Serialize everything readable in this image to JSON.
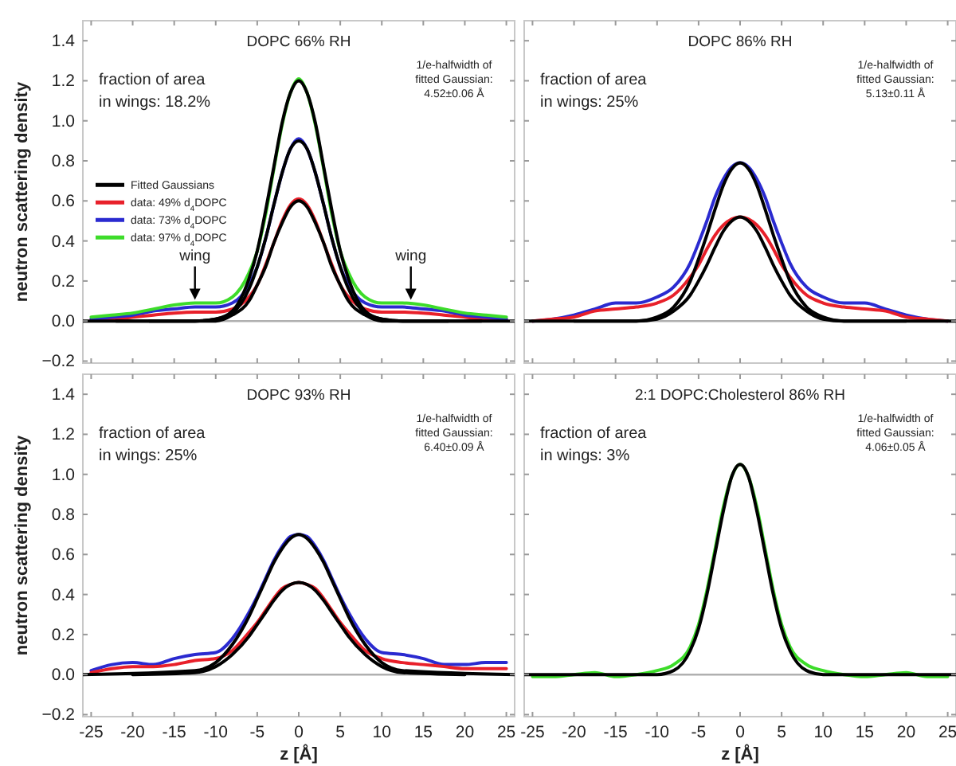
{
  "chart_data": [
    {
      "type": "line",
      "title": "DOPC 66% RH",
      "ylabel": "neutron scattering density",
      "xlim": [
        -26,
        26
      ],
      "ylim": [
        -0.21,
        1.5
      ],
      "xticks": [
        -25,
        -20,
        -15,
        -10,
        -5,
        0,
        5,
        10,
        15,
        20,
        25
      ],
      "yticks": [
        {
          "value": -0.2,
          "label": "−0.2"
        },
        {
          "value": 0,
          "label": "0.0"
        },
        {
          "value": 0.2,
          "label": "0.2"
        },
        {
          "value": 0.4,
          "label": "0.4"
        },
        {
          "value": 0.6,
          "label": "0.6"
        },
        {
          "value": 0.8,
          "label": "0.8"
        },
        {
          "value": 1,
          "label": "1.0"
        },
        {
          "value": 1.2,
          "label": "1.2"
        },
        {
          "value": 1.4,
          "label": "1.4"
        }
      ],
      "tick_labels": "y",
      "legend": "left",
      "annotations": [
        "fraction of area\nin wings: 18.2%",
        "1/e-halfwidth of\nfitted Gaussian:\n4.52±0.06 Å",
        {
          "text": "wing",
          "x": -12.5,
          "y": 0.09
        },
        {
          "text": "wing",
          "x": 13.5,
          "y": 0.09
        }
      ],
      "ref_lines": [
        {
          "axis": "y",
          "value": 0,
          "color": "#b0b0b0"
        }
      ],
      "x": [
        -25,
        -22.5,
        -20,
        -17.5,
        -15,
        -12.5,
        -10,
        -8,
        -6,
        -5,
        -4,
        -3,
        -2,
        -1,
        0,
        1,
        2,
        3,
        4,
        5,
        6,
        8,
        10,
        12.5,
        15,
        17.5,
        20,
        22.5,
        25
      ],
      "series": [
        {
          "name": "Fitted Gaussians",
          "color": "#000000",
          "x": [
            -26,
            -12.5,
            -10,
            -8,
            -6,
            -5,
            -4,
            -3,
            -2,
            -1,
            0,
            1,
            2,
            3,
            4,
            5,
            6,
            8,
            10,
            12.5,
            26
          ],
          "values": [
            0,
            0,
            0.01,
            0.05,
            0.21,
            0.35,
            0.55,
            0.77,
            0.99,
            1.14,
            1.2,
            1.14,
            0.99,
            0.77,
            0.55,
            0.35,
            0.21,
            0.05,
            0.01,
            0,
            0
          ]
        },
        {
          "name": "data: 49% d$_{4}$DOPC",
          "color": "#e8202a",
          "values": [
            0.01,
            0.01,
            0.02,
            0.03,
            0.04,
            0.045,
            0.045,
            0.06,
            0.12,
            0.18,
            0.28,
            0.39,
            0.5,
            0.58,
            0.61,
            0.58,
            0.5,
            0.39,
            0.28,
            0.18,
            0.12,
            0.06,
            0.045,
            0.045,
            0.04,
            0.03,
            0.02,
            0.01,
            0.01
          ]
        },
        {
          "name": "data: 73% d$_{4}$DOPC",
          "color": "#2a2ad0",
          "values": [
            0.01,
            0.02,
            0.03,
            0.05,
            0.06,
            0.07,
            0.07,
            0.09,
            0.18,
            0.27,
            0.41,
            0.58,
            0.74,
            0.86,
            0.91,
            0.86,
            0.74,
            0.58,
            0.41,
            0.27,
            0.18,
            0.09,
            0.07,
            0.07,
            0.06,
            0.05,
            0.03,
            0.02,
            0.01
          ]
        },
        {
          "name": "data: 97% d$_{4}$DOPC",
          "color": "#3ddc2a",
          "values": [
            0.02,
            0.03,
            0.04,
            0.06,
            0.08,
            0.09,
            0.09,
            0.12,
            0.24,
            0.35,
            0.53,
            0.76,
            0.98,
            1.14,
            1.21,
            1.14,
            0.98,
            0.76,
            0.53,
            0.35,
            0.24,
            0.12,
            0.09,
            0.09,
            0.08,
            0.06,
            0.04,
            0.03,
            0.02
          ]
        },
        {
          "color": "#000000",
          "x": [
            -22,
            -12.5,
            -10,
            -8,
            -6,
            -5,
            -4,
            -3,
            -2,
            -1,
            0,
            1,
            2,
            3,
            4,
            5,
            6,
            8,
            10,
            12.5,
            22
          ],
          "values": [
            0,
            0,
            0.01,
            0.04,
            0.16,
            0.27,
            0.41,
            0.58,
            0.74,
            0.86,
            0.9,
            0.86,
            0.74,
            0.58,
            0.41,
            0.27,
            0.16,
            0.04,
            0.01,
            0,
            0
          ]
        },
        {
          "color": "#000000",
          "x": [
            -18,
            -12.5,
            -10,
            -8,
            -6,
            -5,
            -4,
            -3,
            -2,
            -1,
            0,
            1,
            2,
            3,
            4,
            5,
            6,
            8,
            10,
            12.5,
            18
          ],
          "values": [
            0,
            0,
            0,
            0.03,
            0.1,
            0.18,
            0.27,
            0.39,
            0.49,
            0.57,
            0.6,
            0.57,
            0.49,
            0.39,
            0.27,
            0.18,
            0.1,
            0.03,
            0,
            0,
            0
          ]
        }
      ]
    },
    {
      "type": "line",
      "title": "DOPC 86% RH",
      "xlim": [
        -26,
        26
      ],
      "ylim": [
        -0.21,
        1.5
      ],
      "xticks": [
        -25,
        -20,
        -15,
        -10,
        -5,
        0,
        5,
        10,
        15,
        20,
        25
      ],
      "yticks": [
        -0.2,
        0,
        0.2,
        0.4,
        0.6,
        0.8,
        1,
        1.2,
        1.4
      ],
      "tick_labels": false,
      "annotations": [
        "fraction of area\nin wings: 25%",
        "1/e-halfwidth of\nfitted Gaussian:\n5.13±0.11 Å"
      ],
      "ref_lines": [
        {
          "axis": "y",
          "value": 0,
          "color": "#b0b0b0"
        }
      ],
      "x": [
        -25,
        -22.5,
        -20,
        -17.5,
        -15,
        -12.5,
        -10,
        -8,
        -6,
        -5,
        -4,
        -3,
        -2,
        -1,
        0,
        1,
        2,
        3,
        4,
        5,
        6,
        8,
        10,
        12.5,
        15,
        17.5,
        20,
        22.5,
        25
      ],
      "series": [
        {
          "color": "#000000",
          "x": [
            -26,
            -12.5,
            -10,
            -8,
            -6,
            -5,
            -4,
            -3,
            -2,
            -1,
            0,
            1,
            2,
            3,
            4,
            5,
            6,
            8,
            10,
            12.5,
            26
          ],
          "values": [
            0,
            0,
            0.02,
            0.07,
            0.2,
            0.31,
            0.43,
            0.56,
            0.68,
            0.76,
            0.79,
            0.76,
            0.68,
            0.56,
            0.43,
            0.31,
            0.2,
            0.07,
            0.02,
            0,
            0
          ]
        },
        {
          "color": "#2a2ad0",
          "values": [
            0,
            0.01,
            0.03,
            0.06,
            0.09,
            0.09,
            0.12,
            0.17,
            0.29,
            0.39,
            0.5,
            0.62,
            0.71,
            0.77,
            0.79,
            0.77,
            0.71,
            0.62,
            0.5,
            0.39,
            0.29,
            0.17,
            0.12,
            0.09,
            0.09,
            0.06,
            0.03,
            0.01,
            0
          ]
        },
        {
          "color": "#e8202a",
          "values": [
            0,
            0.01,
            0.02,
            0.05,
            0.06,
            0.07,
            0.09,
            0.13,
            0.22,
            0.28,
            0.36,
            0.43,
            0.48,
            0.51,
            0.52,
            0.51,
            0.48,
            0.43,
            0.36,
            0.28,
            0.22,
            0.13,
            0.09,
            0.07,
            0.06,
            0.05,
            0.02,
            0.01,
            0
          ]
        },
        {
          "color": "#000000",
          "x": [
            -20,
            -12.5,
            -10,
            -8,
            -6,
            -5,
            -4,
            -3,
            -2,
            -1,
            0,
            1,
            2,
            3,
            4,
            5,
            6,
            8,
            10,
            12.5,
            20
          ],
          "values": [
            0,
            0,
            0.01,
            0.05,
            0.13,
            0.2,
            0.28,
            0.37,
            0.45,
            0.5,
            0.52,
            0.5,
            0.45,
            0.37,
            0.28,
            0.2,
            0.13,
            0.05,
            0.01,
            0,
            0
          ]
        }
      ]
    },
    {
      "type": "line",
      "title": "DOPC 93% RH",
      "xlabel": "z [Å]",
      "ylabel": "neutron scattering density",
      "xlim": [
        -26,
        26
      ],
      "ylim": [
        -0.21,
        1.5
      ],
      "xticks": [
        -25,
        -20,
        -15,
        -10,
        -5,
        0,
        5,
        10,
        15,
        20,
        25
      ],
      "yticks": [
        {
          "value": -0.2,
          "label": "−0.2"
        },
        {
          "value": 0,
          "label": "0.0"
        },
        {
          "value": 0.2,
          "label": "0.2"
        },
        {
          "value": 0.4,
          "label": "0.4"
        },
        {
          "value": 0.6,
          "label": "0.6"
        },
        {
          "value": 0.8,
          "label": "0.8"
        },
        {
          "value": 1,
          "label": "1.0"
        },
        {
          "value": 1.2,
          "label": "1.2"
        },
        {
          "value": 1.4,
          "label": "1.4"
        }
      ],
      "annotations": [
        "fraction of area\nin wings: 25%",
        "1/e-halfwidth of\nfitted Gaussian:\n6.40±0.09 Å"
      ],
      "ref_lines": [
        {
          "axis": "y",
          "value": 0,
          "color": "#b0b0b0"
        }
      ],
      "x": [
        -25,
        -22.5,
        -20,
        -17.5,
        -15,
        -12.5,
        -10,
        -8,
        -6,
        -5,
        -4,
        -3,
        -2,
        -1,
        0,
        1,
        2,
        3,
        4,
        5,
        6,
        8,
        10,
        12.5,
        15,
        17.5,
        20,
        22.5,
        25
      ],
      "series": [
        {
          "color": "#000000",
          "x": [
            -26,
            -12.5,
            -10,
            -8,
            -6,
            -5,
            -4,
            -3,
            -2,
            -1,
            0,
            1,
            2,
            3,
            4,
            5,
            6,
            8,
            10,
            12.5,
            26
          ],
          "values": [
            0,
            0.02,
            0.06,
            0.15,
            0.29,
            0.38,
            0.47,
            0.56,
            0.63,
            0.68,
            0.7,
            0.68,
            0.63,
            0.56,
            0.47,
            0.38,
            0.29,
            0.15,
            0.06,
            0.02,
            0
          ]
        },
        {
          "color": "#2a2ad0",
          "values": [
            0.02,
            0.05,
            0.06,
            0.05,
            0.08,
            0.1,
            0.11,
            0.18,
            0.31,
            0.39,
            0.48,
            0.57,
            0.64,
            0.69,
            0.7,
            0.69,
            0.64,
            0.57,
            0.48,
            0.39,
            0.31,
            0.18,
            0.11,
            0.1,
            0.08,
            0.05,
            0.05,
            0.06,
            0.06
          ]
        },
        {
          "color": "#e8202a",
          "values": [
            0.01,
            0.03,
            0.04,
            0.04,
            0.05,
            0.07,
            0.08,
            0.12,
            0.21,
            0.26,
            0.32,
            0.38,
            0.43,
            0.45,
            0.46,
            0.45,
            0.43,
            0.38,
            0.32,
            0.26,
            0.21,
            0.12,
            0.08,
            0.06,
            0.05,
            0.04,
            0.03,
            0.03,
            0.03
          ]
        },
        {
          "color": "#000000",
          "x": [
            -20,
            -12.5,
            -10,
            -8,
            -6,
            -5,
            -4,
            -3,
            -2,
            -1,
            0,
            1,
            2,
            3,
            4,
            5,
            6,
            8,
            10,
            12.5,
            20
          ],
          "values": [
            0,
            0.01,
            0.04,
            0.1,
            0.19,
            0.25,
            0.31,
            0.37,
            0.42,
            0.45,
            0.46,
            0.45,
            0.42,
            0.37,
            0.31,
            0.25,
            0.19,
            0.1,
            0.04,
            0.01,
            0
          ]
        }
      ]
    },
    {
      "type": "line",
      "title": "2:1 DOPC:Cholesterol 86% RH",
      "xlabel": "z [Å]",
      "xlim": [
        -26,
        26
      ],
      "ylim": [
        -0.21,
        1.5
      ],
      "xticks": [
        -25,
        -20,
        -15,
        -10,
        -5,
        0,
        5,
        10,
        15,
        20,
        25
      ],
      "yticks": [
        -0.2,
        0,
        0.2,
        0.4,
        0.6,
        0.8,
        1,
        1.2,
        1.4
      ],
      "tick_labels": "x",
      "annotations": [
        "fraction of area\nin wings: 3%",
        "1/e-halfwidth of\nfitted Gaussian:\n4.06±0.05 Å"
      ],
      "ref_lines": [
        {
          "axis": "y",
          "value": 0,
          "color": "#b0b0b0"
        }
      ],
      "x": [
        -25,
        -22.5,
        -20,
        -17.5,
        -15,
        -12.5,
        -10,
        -8,
        -6,
        -5,
        -4,
        -3,
        -2,
        -1,
        0,
        1,
        2,
        3,
        4,
        5,
        6,
        8,
        10,
        12.5,
        15,
        17.5,
        20,
        22.5,
        25
      ],
      "series": [
        {
          "color": "#000000",
          "x": [
            -26,
            -12.5,
            -10,
            -8,
            -6,
            -5,
            -4,
            -3,
            -2,
            -1,
            0,
            1,
            2,
            3,
            4,
            5,
            6,
            8,
            10,
            12.5,
            26
          ],
          "values": [
            0,
            0,
            0,
            0.02,
            0.12,
            0.23,
            0.4,
            0.61,
            0.82,
            0.99,
            1.05,
            0.99,
            0.82,
            0.61,
            0.4,
            0.23,
            0.12,
            0.02,
            0,
            0,
            0
          ]
        },
        {
          "color": "#3ddc2a",
          "values": [
            -0.01,
            -0.01,
            0,
            0.01,
            -0.01,
            0,
            0.02,
            0.05,
            0.14,
            0.25,
            0.42,
            0.63,
            0.84,
            0.99,
            1.05,
            0.99,
            0.84,
            0.63,
            0.42,
            0.25,
            0.14,
            0.05,
            0.02,
            0,
            -0.01,
            0,
            0.01,
            -0.01,
            -0.01
          ]
        }
      ]
    }
  ]
}
